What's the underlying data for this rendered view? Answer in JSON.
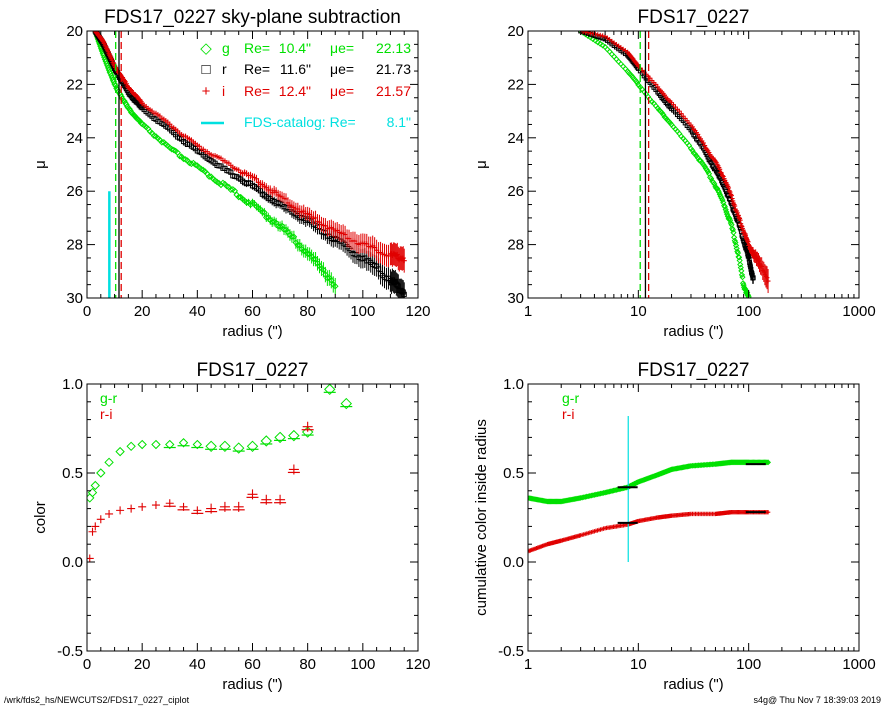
{
  "footer": {
    "left": "/wrk/fds2_hs/NEWCUTS2/FDS17_0227_ciplot",
    "right": "s4g@  Thu Nov  7 18:39:03 2019"
  },
  "colors": {
    "g": "#00e000",
    "r": "#000000",
    "i": "#e00000",
    "catalog": "#00e0e0"
  },
  "chart_data": [
    {
      "id": "p1",
      "type": "scatter",
      "title": "FDS17_0227 sky-plane subtraction",
      "xlabel": "radius (\")",
      "ylabel": "μ",
      "xlim": [
        0,
        120
      ],
      "ylim": [
        30,
        20
      ],
      "xticks": [
        "0",
        "20",
        "40",
        "60",
        "80",
        "100",
        "120"
      ],
      "yticks": [
        "20",
        "22",
        "24",
        "26",
        "28",
        "30"
      ],
      "xscale": "linear",
      "legend": [
        {
          "marker": "◇",
          "band": "g",
          "re_label": "Re=",
          "re": "10.4\"",
          "mu_label": "μe=",
          "mu": "22.13"
        },
        {
          "marker": "□",
          "band": "r",
          "re_label": "Re=",
          "re": "11.6\"",
          "mu_label": "μe=",
          "mu": "21.73"
        },
        {
          "marker": "+",
          "band": "i",
          "re_label": "Re=",
          "re": "12.4\"",
          "mu_label": "μe=",
          "mu": "21.57"
        }
      ],
      "catalog_label": "FDS-catalog: Re=",
      "catalog_value": "8.1\"",
      "catalog_re": 8.1,
      "catalog_bar": [
        26,
        30
      ],
      "series": [
        {
          "name": "g",
          "x": [
            3,
            6,
            10,
            15,
            20,
            30,
            40,
            50,
            60,
            70,
            80,
            90
          ],
          "y": [
            20.0,
            20.9,
            22.0,
            22.9,
            23.5,
            24.4,
            25.1,
            25.8,
            26.5,
            27.3,
            28.3,
            29.5
          ]
        },
        {
          "name": "r",
          "x": [
            3,
            6,
            10,
            15,
            20,
            30,
            40,
            50,
            60,
            70,
            80,
            90,
            100,
            110,
            115
          ],
          "y": [
            20.0,
            20.5,
            21.4,
            22.3,
            22.9,
            23.7,
            24.5,
            25.2,
            25.8,
            26.5,
            27.1,
            27.8,
            28.5,
            29.3,
            29.8
          ]
        },
        {
          "name": "i",
          "x": [
            3,
            6,
            10,
            15,
            20,
            30,
            40,
            50,
            60,
            70,
            80,
            90,
            100,
            110,
            115
          ],
          "y": [
            20.0,
            20.4,
            21.3,
            22.1,
            22.7,
            23.5,
            24.3,
            24.9,
            25.5,
            26.2,
            26.9,
            27.5,
            28.0,
            28.4,
            28.5
          ]
        }
      ],
      "vlines": [
        {
          "band": "g",
          "x": 10.4,
          "style": "dashed"
        },
        {
          "band": "r",
          "x": 11.6,
          "style": "solid"
        },
        {
          "band": "i",
          "x": 12.4,
          "style": "dashed"
        }
      ]
    },
    {
      "id": "p2",
      "type": "scatter",
      "title": "FDS17_0227",
      "xlabel": "radius (\")",
      "ylabel": "μ",
      "xlim": [
        1,
        1000
      ],
      "ylim": [
        30,
        20
      ],
      "xscale": "log",
      "xticks": [
        "1",
        "10",
        "100",
        "1000"
      ],
      "yticks": [
        "20",
        "22",
        "24",
        "26",
        "28",
        "30"
      ],
      "series": [
        {
          "name": "g",
          "x": [
            3,
            5,
            8,
            10,
            15,
            20,
            30,
            40,
            50,
            60,
            70,
            80,
            90,
            100
          ],
          "y": [
            20.0,
            20.6,
            21.5,
            22.0,
            22.9,
            23.5,
            24.4,
            25.1,
            25.8,
            26.5,
            27.3,
            28.3,
            29.5,
            30.0
          ]
        },
        {
          "name": "r",
          "x": [
            3,
            5,
            8,
            10,
            15,
            20,
            30,
            40,
            50,
            60,
            70,
            80,
            90,
            100,
            110
          ],
          "y": [
            20.0,
            20.3,
            20.9,
            21.4,
            22.3,
            22.9,
            23.7,
            24.5,
            25.2,
            25.8,
            26.5,
            27.1,
            27.8,
            28.5,
            29.3
          ]
        },
        {
          "name": "i",
          "x": [
            3,
            5,
            8,
            10,
            15,
            20,
            30,
            40,
            50,
            60,
            70,
            80,
            90,
            100,
            120,
            150
          ],
          "y": [
            20.0,
            20.2,
            20.8,
            21.3,
            22.1,
            22.7,
            23.5,
            24.3,
            24.9,
            25.5,
            26.2,
            26.9,
            27.5,
            28.0,
            28.6,
            29.3
          ]
        }
      ],
      "vlines": [
        {
          "band": "g",
          "x": 10.4,
          "style": "dashed"
        },
        {
          "band": "r",
          "x": 11.6,
          "style": "solid"
        },
        {
          "band": "i",
          "x": 12.4,
          "style": "dashed"
        }
      ]
    },
    {
      "id": "p3",
      "type": "scatter",
      "title": "FDS17_0227",
      "xlabel": "radius (\")",
      "ylabel": "color",
      "xlim": [
        0,
        120
      ],
      "ylim": [
        -0.5,
        1.0
      ],
      "xscale": "linear",
      "xticks": [
        "0",
        "20",
        "40",
        "60",
        "80",
        "100",
        "120"
      ],
      "yticks": [
        "-0.5",
        "0.0",
        "0.5",
        "1.0"
      ],
      "legend": [
        "g-r",
        "r-i"
      ],
      "series": [
        {
          "name": "g-r",
          "x": [
            1,
            2,
            3,
            5,
            8,
            12,
            16,
            20,
            25,
            30,
            35,
            40,
            45,
            50,
            55,
            60,
            65,
            70,
            75,
            80,
            88,
            94
          ],
          "y": [
            0.36,
            0.39,
            0.43,
            0.5,
            0.56,
            0.62,
            0.65,
            0.66,
            0.66,
            0.66,
            0.67,
            0.66,
            0.65,
            0.65,
            0.64,
            0.65,
            0.68,
            0.7,
            0.71,
            0.73,
            0.97,
            0.89
          ]
        },
        {
          "name": "r-i",
          "x": [
            1,
            2,
            3,
            5,
            8,
            12,
            16,
            20,
            25,
            30,
            35,
            40,
            45,
            50,
            55,
            60,
            65,
            70,
            75,
            80
          ],
          "y": [
            0.02,
            0.17,
            0.2,
            0.24,
            0.27,
            0.29,
            0.3,
            0.31,
            0.32,
            0.33,
            0.31,
            0.29,
            0.3,
            0.31,
            0.31,
            0.38,
            0.35,
            0.35,
            0.52,
            0.76
          ]
        }
      ]
    },
    {
      "id": "p4",
      "type": "scatter",
      "title": "FDS17_0227",
      "xlabel": "radius (\")",
      "ylabel": "cumulative color inside radius",
      "xlim": [
        1,
        1000
      ],
      "ylim": [
        -0.5,
        1.0
      ],
      "xscale": "log",
      "xticks": [
        "1",
        "10",
        "100",
        "1000"
      ],
      "yticks": [
        "-0.5",
        "0.0",
        "0.5",
        "1.0"
      ],
      "legend": [
        "g-r",
        "r-i"
      ],
      "catalog_re": 8.1,
      "series": [
        {
          "name": "g-r",
          "x": [
            1,
            1.5,
            2,
            3,
            5,
            8,
            10,
            15,
            20,
            30,
            50,
            70,
            100,
            150
          ],
          "y": [
            0.36,
            0.34,
            0.34,
            0.36,
            0.39,
            0.42,
            0.45,
            0.49,
            0.52,
            0.54,
            0.55,
            0.56,
            0.56,
            0.56
          ]
        },
        {
          "name": "r-i",
          "x": [
            1,
            1.5,
            2,
            3,
            5,
            8,
            10,
            15,
            20,
            30,
            50,
            70,
            100,
            150
          ],
          "y": [
            0.06,
            0.1,
            0.12,
            0.15,
            0.19,
            0.21,
            0.23,
            0.25,
            0.26,
            0.27,
            0.27,
            0.28,
            0.28,
            0.28
          ]
        }
      ],
      "ticks_at": [
        {
          "band": "g-r",
          "x": [
            8,
            116
          ],
          "y": [
            0.42,
            0.55
          ]
        },
        {
          "band": "r-i",
          "x": [
            8,
            116
          ],
          "y": [
            0.22,
            0.28
          ]
        }
      ]
    }
  ]
}
